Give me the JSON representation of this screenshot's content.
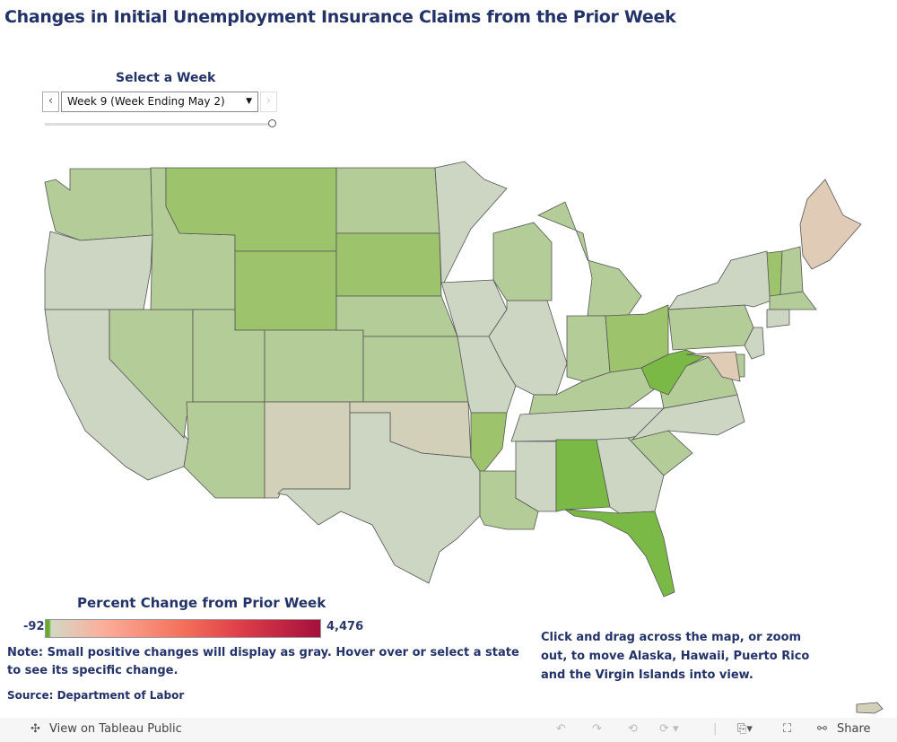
{
  "title": "Changes in Initial Unemployment Insurance Claims from the Prior Week",
  "week_selector": {
    "label": "Select a Week",
    "selected": "Week 9 (Week Ending May 2)",
    "slider_position": 1.0
  },
  "legend": {
    "title": "Percent Change from Prior Week",
    "min": "-92",
    "max": "4,476"
  },
  "note": "Note: Small positive changes will display as gray. Hover over or select a state to see its specific change.",
  "source": "Source: Department of Labor",
  "instructions": "Click and drag across the map, or zoom out, to move Alaska, Hawaii, Puerto Rico and the Virgin Islands into view.",
  "toolbar": {
    "view_link": "View on Tableau Public",
    "share": "Share"
  },
  "colors": {
    "gray": "#cdd5c3",
    "light": "#b3cc98",
    "mid": "#9dc46c",
    "strong": "#7ab945",
    "tan": "#d3d0ba",
    "peach": "#dfcbb6"
  },
  "states": {
    "WA": "light",
    "OR": "gray",
    "CA": "gray",
    "NV": "light",
    "ID": "light",
    "MT": "mid",
    "WY": "mid",
    "UT": "light",
    "AZ": "light",
    "CO": "light",
    "NM": "tan",
    "ND": "light",
    "SD": "mid",
    "NE": "light",
    "KS": "light",
    "OK": "tan",
    "TX": "gray",
    "MN": "gray",
    "IA": "gray",
    "MO": "gray",
    "AR": "mid",
    "LA": "light",
    "WI": "light",
    "MI": "light",
    "IL": "gray",
    "IN": "light",
    "OH": "mid",
    "KY": "light",
    "TN": "gray",
    "MS": "gray",
    "AL": "strong",
    "GA": "gray",
    "FL": "strong",
    "SC": "light",
    "NC": "gray",
    "VA": "light",
    "WV": "strong",
    "PA": "light",
    "NY": "gray",
    "ME": "peach",
    "VT": "mid",
    "NH": "light",
    "MA": "light",
    "CT": "gray",
    "NJ": "gray",
    "DE": "light",
    "MD": "peach",
    "PR": "tan"
  }
}
